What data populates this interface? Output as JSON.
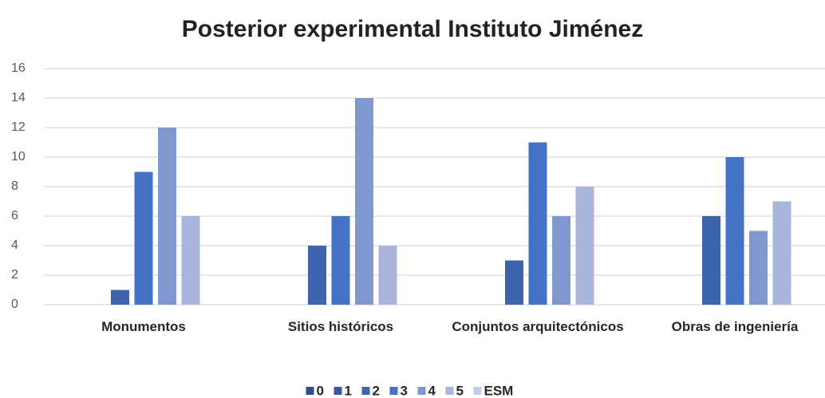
{
  "chart_data": {
    "type": "bar",
    "title": "Posterior experimental Instituto Jiménez",
    "categories": [
      "Monumentos",
      "Sitios históricos",
      "Conjuntos arquitectónicos",
      "Obras de ingeniería"
    ],
    "series": [
      {
        "name": "0",
        "color": "#2e4f8e",
        "values": [
          0,
          0,
          0,
          0
        ]
      },
      {
        "name": "1",
        "color": "#3659a0",
        "values": [
          0,
          0,
          0,
          0
        ]
      },
      {
        "name": "2",
        "color": "#3d64ad",
        "values": [
          1,
          4,
          3,
          6
        ]
      },
      {
        "name": "3",
        "color": "#4472c4",
        "values": [
          9,
          6,
          11,
          10
        ]
      },
      {
        "name": "4",
        "color": "#8097cf",
        "values": [
          12,
          14,
          6,
          5
        ]
      },
      {
        "name": "5",
        "color": "#a9b5dc",
        "values": [
          6,
          4,
          8,
          7
        ]
      },
      {
        "name": "ESM",
        "color": "#c7cfe8",
        "values": [
          0,
          0,
          0,
          0
        ]
      }
    ],
    "ylim": [
      0,
      16
    ],
    "yticks": [
      0,
      2,
      4,
      6,
      8,
      10,
      12,
      14,
      16
    ],
    "grid": true,
    "legend": "bottom"
  }
}
